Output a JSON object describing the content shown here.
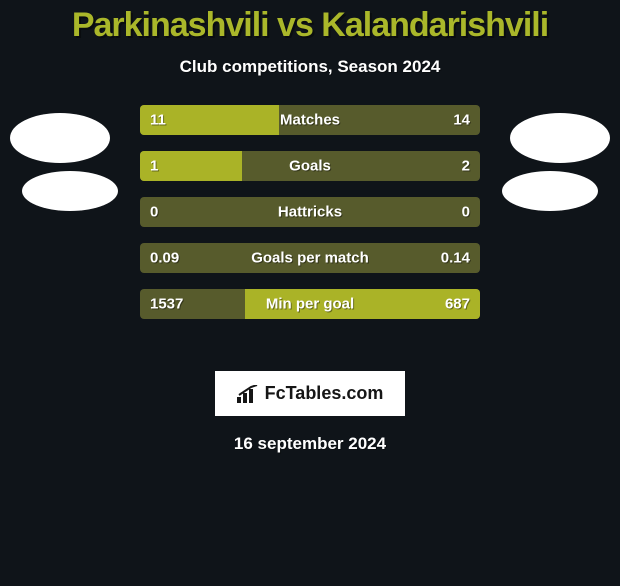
{
  "colors": {
    "background": "#0f1419",
    "title": "#aab72a",
    "subtitle": "#ffffff",
    "bar_bg": "#575b2c",
    "bar_fill": "#aab327",
    "value_text": "#ffffff",
    "metric_text": "#ffffff",
    "badge_bg": "#ffffff",
    "badge_text": "#161616",
    "avatar": "#ffffff",
    "date_text": "#ffffff"
  },
  "title": {
    "text": "Parkinashvili vs Kalandarishvili",
    "fontsize": 34
  },
  "subtitle": {
    "text": "Club competitions, Season 2024",
    "fontsize": 17
  },
  "rows": [
    {
      "metric": "Matches",
      "left": "11",
      "right": "14",
      "left_pct": 41,
      "right_pct": 0
    },
    {
      "metric": "Goals",
      "left": "1",
      "right": "2",
      "left_pct": 30,
      "right_pct": 0
    },
    {
      "metric": "Hattricks",
      "left": "0",
      "right": "0",
      "left_pct": 0,
      "right_pct": 0
    },
    {
      "metric": "Goals per match",
      "left": "0.09",
      "right": "0.14",
      "left_pct": 0,
      "right_pct": 0
    },
    {
      "metric": "Min per goal",
      "left": "1537",
      "right": "687",
      "left_pct": 0,
      "right_pct": 69
    }
  ],
  "badge": {
    "text": "FcTables.com"
  },
  "date": {
    "text": "16 september 2024",
    "fontsize": 17
  }
}
